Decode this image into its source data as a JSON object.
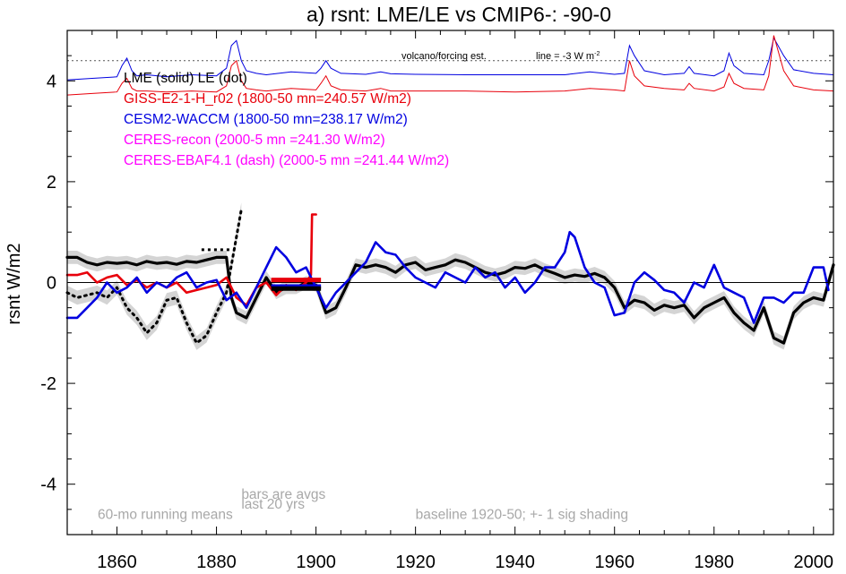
{
  "chart_data": {
    "type": "line",
    "title": "a) rsnt: LME/LE vs CMIP6-: -90-0",
    "ylabel": "rsnt W/m2",
    "xlabel": "",
    "xlim": [
      1850,
      2004
    ],
    "ylim": [
      -5,
      5
    ],
    "xticks": [
      1860,
      1880,
      1900,
      1920,
      1940,
      1960,
      1980,
      2000
    ],
    "yticks": [
      -4,
      -2,
      0,
      2,
      4
    ],
    "zero_line": 0,
    "dotted_ref": {
      "y": 4.4,
      "label": "volcano/forcing est.",
      "label2": "line = -3 W m",
      "label2_sup": "-2"
    },
    "legend": [
      {
        "text": "LME (solid)   LE (dot)",
        "color": "#000000"
      },
      {
        "text": "GISS-E2-1-H_r02 (1800-50 mn=240.57 W/m2)",
        "color": "#e8000b"
      },
      {
        "text": "CESM2-WACCM (1800-50 mn=238.17 W/m2)",
        "color": "#0000e0"
      },
      {
        "text": "CERES-recon (2000-5 mn =241.30 W/m2)",
        "color": "#ff00ff"
      },
      {
        "text": "CERES-EBAF4.1 (dash) (2000-5 mn =241.44 W/m2)",
        "color": "#ff00ff"
      }
    ],
    "annotations": [
      {
        "text": "bars are avgs",
        "x": 1885,
        "y": -4.2
      },
      {
        "text": "last 20 yrs",
        "x": 1885,
        "y": -4.4
      },
      {
        "text": "60-mo running means",
        "x": 1850,
        "y": -4.6
      },
      {
        "text": "baseline 1920-50; +- 1 sig shading",
        "x": 1920,
        "y": -4.6
      }
    ],
    "series": [
      {
        "name": "LME (solid)",
        "color": "#000000",
        "width": 3.2,
        "dash": "",
        "x": [
          1850,
          1852,
          1854,
          1856,
          1858,
          1860,
          1862,
          1864,
          1866,
          1868,
          1870,
          1872,
          1874,
          1876,
          1878,
          1880,
          1882,
          1883,
          1884,
          1886,
          1888,
          1890,
          1892,
          1894,
          1896,
          1898,
          1900,
          1902,
          1904,
          1906,
          1908,
          1910,
          1912,
          1914,
          1916,
          1918,
          1920,
          1922,
          1924,
          1926,
          1928,
          1930,
          1932,
          1934,
          1936,
          1938,
          1940,
          1942,
          1944,
          1946,
          1948,
          1950,
          1952,
          1954,
          1956,
          1958,
          1960,
          1962,
          1964,
          1966,
          1968,
          1970,
          1972,
          1974,
          1976,
          1978,
          1980,
          1982,
          1984,
          1986,
          1988,
          1990,
          1992,
          1994,
          1996,
          1998,
          2000,
          2002,
          2004
        ],
        "y": [
          0.5,
          0.5,
          0.4,
          0.35,
          0.4,
          0.38,
          0.4,
          0.35,
          0.42,
          0.38,
          0.4,
          0.36,
          0.42,
          0.4,
          0.45,
          0.5,
          0.5,
          -0.3,
          -0.6,
          -0.7,
          -0.3,
          0.1,
          -0.2,
          -0.1,
          -0.1,
          0.0,
          -0.05,
          -0.6,
          -0.5,
          -0.1,
          0.35,
          0.3,
          0.35,
          0.3,
          0.2,
          0.35,
          0.4,
          0.25,
          0.3,
          0.35,
          0.45,
          0.4,
          0.3,
          0.2,
          0.15,
          0.2,
          0.3,
          0.28,
          0.35,
          0.25,
          0.18,
          0.1,
          0.15,
          0.12,
          0.18,
          0.1,
          -0.1,
          -0.5,
          -0.35,
          -0.4,
          -0.55,
          -0.45,
          -0.5,
          -0.45,
          -0.7,
          -0.5,
          -0.4,
          -0.3,
          -0.6,
          -0.8,
          -0.95,
          -0.5,
          -1.1,
          -1.2,
          -0.6,
          -0.4,
          -0.3,
          -0.35,
          0.35
        ]
      },
      {
        "name": "LE (dot)",
        "color": "#000000",
        "width": 3,
        "dash": "2,5",
        "x": [
          1850,
          1852,
          1854,
          1856,
          1858,
          1860,
          1862,
          1864,
          1866,
          1868,
          1870,
          1872,
          1874,
          1876,
          1878,
          1880,
          1882,
          1884,
          1885
        ],
        "y": [
          -0.2,
          -0.3,
          -0.25,
          -0.2,
          -0.3,
          -0.1,
          -0.5,
          -0.7,
          -1.0,
          -0.8,
          -0.35,
          -0.3,
          -0.8,
          -1.2,
          -1.05,
          -0.6,
          -0.2,
          0.9,
          1.45
        ]
      },
      {
        "name": "GISS-E2-1-H_r02",
        "color": "#e8000b",
        "width": 2.6,
        "dash": "",
        "x": [
          1850,
          1852,
          1854,
          1856,
          1858,
          1860,
          1862,
          1864,
          1866,
          1868,
          1870,
          1872,
          1874,
          1876,
          1878,
          1880,
          1882,
          1884,
          1886,
          1888,
          1890,
          1892,
          1894,
          1896,
          1898,
          1899,
          1899.2,
          1899.3,
          1900
        ],
        "y": [
          0.15,
          0.15,
          0.2,
          0.0,
          0.1,
          0.15,
          -0.05,
          0.05,
          -0.1,
          0.0,
          -0.1,
          0.0,
          -0.2,
          -0.15,
          -0.1,
          -0.05,
          0.1,
          -0.3,
          -0.45,
          -0.1,
          0.0,
          -0.25,
          -0.05,
          -0.15,
          0.0,
          0.15,
          1.35,
          1.35,
          1.35
        ]
      },
      {
        "name": "CESM2-WACCM",
        "color": "#0000e0",
        "width": 2.6,
        "dash": "",
        "x": [
          1850,
          1852,
          1854,
          1856,
          1858,
          1860,
          1862,
          1864,
          1866,
          1868,
          1870,
          1872,
          1874,
          1876,
          1878,
          1880,
          1882,
          1884,
          1886,
          1888,
          1890,
          1892,
          1894,
          1896,
          1898,
          1900,
          1902,
          1904,
          1906,
          1908,
          1910,
          1912,
          1914,
          1916,
          1918,
          1920,
          1922,
          1924,
          1926,
          1928,
          1930,
          1932,
          1934,
          1936,
          1938,
          1940,
          1942,
          1944,
          1946,
          1948,
          1950,
          1951,
          1952,
          1954,
          1956,
          1958,
          1960,
          1962,
          1964,
          1966,
          1968,
          1970,
          1972,
          1974,
          1976,
          1978,
          1980,
          1982,
          1984,
          1986,
          1988,
          1990,
          1992,
          1994,
          1996,
          1998,
          2000,
          2002,
          2003
        ],
        "y": [
          -0.7,
          -0.7,
          -0.5,
          -0.3,
          0.0,
          -0.2,
          -0.1,
          0.1,
          -0.2,
          0.0,
          -0.1,
          0.1,
          0.2,
          -0.1,
          0.0,
          0.05,
          -0.35,
          -0.2,
          -0.5,
          -0.1,
          0.3,
          0.7,
          0.5,
          0.2,
          0.3,
          -0.1,
          -0.5,
          -0.2,
          0.0,
          0.2,
          0.4,
          0.8,
          0.6,
          0.55,
          0.3,
          0.1,
          0.0,
          -0.1,
          0.2,
          0.1,
          0.0,
          0.3,
          0.1,
          0.2,
          -0.1,
          0.1,
          -0.2,
          0.0,
          0.3,
          0.3,
          0.6,
          1.0,
          0.9,
          0.3,
          0.0,
          -0.1,
          -0.65,
          -0.6,
          0.0,
          0.2,
          0.05,
          -0.15,
          -0.2,
          -0.4,
          0.0,
          -0.1,
          0.35,
          -0.1,
          -0.2,
          -0.3,
          -0.8,
          -0.3,
          -0.3,
          -0.4,
          -0.2,
          -0.2,
          0.3,
          0.3,
          -0.15
        ]
      }
    ],
    "bars": [
      {
        "name": "GISS-E2-1-H_r02 avg",
        "color": "#e8000b",
        "x0": 1891,
        "x1": 1901,
        "y": 0.05
      },
      {
        "name": "CESM2-WACCM avg",
        "color": "#0000e0",
        "x0": 1891,
        "x1": 1901,
        "y": -0.08
      },
      {
        "name": "LME avg",
        "color": "#000000",
        "x0": 1891,
        "x1": 1901,
        "y": -0.12
      },
      {
        "name": "LE avg",
        "color": "#000000",
        "x0": 1877,
        "x1": 1883,
        "y": 0.65,
        "dash": "3,4"
      }
    ],
    "forcing": [
      {
        "name": "CESM2-WACCM forcing",
        "color": "#0000e0",
        "x": [
          1850,
          1855,
          1860,
          1861,
          1862,
          1863,
          1864,
          1866,
          1870,
          1875,
          1880,
          1882,
          1883,
          1884,
          1885,
          1886,
          1888,
          1890,
          1895,
          1900,
          1901,
          1902,
          1903,
          1905,
          1910,
          1913,
          1915,
          1920,
          1930,
          1940,
          1950,
          1955,
          1960,
          1962,
          1963,
          1964,
          1966,
          1970,
          1974,
          1975,
          1976,
          1980,
          1982,
          1983,
          1984,
          1986,
          1990,
          1991,
          1992,
          1994,
          1996,
          2000,
          2004
        ],
        "y": [
          4.02,
          4.05,
          4.08,
          4.3,
          4.45,
          4.2,
          4.1,
          4.12,
          4.08,
          4.12,
          4.1,
          4.25,
          4.7,
          4.8,
          4.4,
          4.2,
          4.15,
          4.12,
          4.18,
          4.15,
          4.25,
          4.4,
          4.25,
          4.15,
          4.13,
          4.18,
          4.14,
          4.13,
          4.12,
          4.12,
          4.12,
          4.18,
          4.13,
          4.15,
          4.7,
          4.5,
          4.2,
          4.12,
          4.15,
          4.28,
          4.15,
          4.1,
          4.2,
          4.55,
          4.3,
          4.15,
          4.12,
          4.4,
          4.85,
          4.5,
          4.22,
          4.15,
          4.12
        ]
      },
      {
        "name": "GISS-E2-1-H_r02 forcing",
        "color": "#e8000b",
        "x": [
          1850,
          1855,
          1860,
          1861,
          1862,
          1863,
          1864,
          1866,
          1870,
          1875,
          1880,
          1882,
          1883,
          1884,
          1885,
          1886,
          1888,
          1890,
          1895,
          1900,
          1901,
          1902,
          1903,
          1905,
          1910,
          1913,
          1915,
          1920,
          1930,
          1940,
          1950,
          1955,
          1960,
          1962,
          1963,
          1964,
          1966,
          1970,
          1974,
          1975,
          1976,
          1980,
          1982,
          1983,
          1984,
          1986,
          1990,
          1991,
          1992,
          1994,
          1996,
          2000,
          2004
        ],
        "y": [
          3.72,
          3.75,
          3.78,
          3.95,
          4.05,
          3.85,
          3.8,
          3.8,
          3.78,
          3.8,
          3.78,
          3.9,
          4.3,
          4.4,
          4.0,
          3.85,
          3.82,
          3.8,
          3.85,
          3.82,
          3.95,
          4.1,
          3.9,
          3.82,
          3.8,
          3.85,
          3.8,
          3.8,
          3.8,
          3.78,
          3.8,
          3.85,
          3.82,
          3.8,
          4.4,
          4.1,
          3.9,
          3.85,
          3.82,
          3.95,
          3.85,
          3.8,
          3.88,
          4.15,
          3.95,
          3.85,
          3.82,
          4.1,
          4.9,
          4.2,
          3.9,
          3.82,
          3.8
        ]
      }
    ]
  }
}
